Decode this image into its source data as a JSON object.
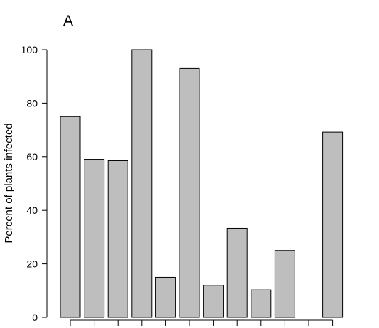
{
  "panel_label": "A",
  "chart_data": {
    "type": "bar",
    "title": "",
    "xlabel": "",
    "ylabel": "Percent of plants infected",
    "categories": [
      "",
      "",
      "",
      "",
      "",
      "",
      "",
      "",
      "",
      "",
      "",
      ""
    ],
    "values": [
      75,
      59,
      58.5,
      100,
      15,
      93,
      12,
      33.3,
      10.3,
      25,
      0,
      69.2
    ],
    "ylim": [
      0,
      100
    ],
    "yticks": [
      0,
      20,
      40,
      60,
      80,
      100
    ],
    "grid": false,
    "bar_color": "#bebebe",
    "bar_edge_color": "#000000"
  }
}
